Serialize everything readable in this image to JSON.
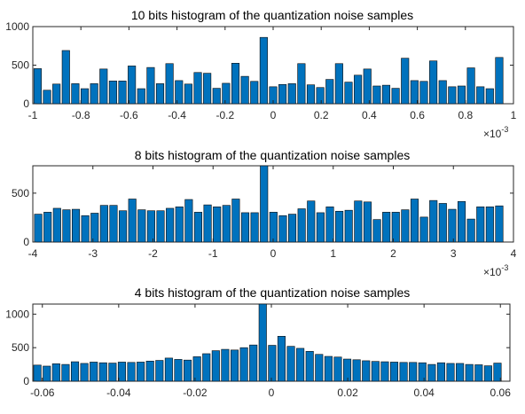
{
  "colors": {
    "bar": "#0072BD",
    "axis": "#262626",
    "background": "#ffffff"
  },
  "chart_data": [
    {
      "type": "bar",
      "title": "10 bits histogram of the quantization noise samples",
      "x_multiplier_label": "×10",
      "x_multiplier_exponent": "-3",
      "xlim": [
        -1,
        1
      ],
      "ylim": [
        0,
        1000
      ],
      "xticks": [
        -1,
        -0.8,
        -0.6,
        -0.4,
        -0.2,
        0,
        0.2,
        0.4,
        0.6,
        0.8,
        1
      ],
      "xtick_labels": [
        "-1",
        "-0.8",
        "-0.6",
        "-0.4",
        "-0.2",
        "0",
        "0.2",
        "0.4",
        "0.6",
        "0.8",
        "1"
      ],
      "yticks": [
        0,
        500,
        1000
      ],
      "ytick_labels": [
        "0",
        "500",
        "1000"
      ],
      "bin_start": -0.98,
      "bin_width": 0.0392,
      "values": [
        455,
        175,
        255,
        690,
        260,
        195,
        260,
        450,
        295,
        295,
        490,
        195,
        470,
        260,
        520,
        300,
        255,
        405,
        395,
        200,
        265,
        525,
        355,
        290,
        860,
        220,
        250,
        260,
        520,
        245,
        210,
        315,
        520,
        280,
        370,
        450,
        230,
        240,
        200,
        590,
        300,
        290,
        555,
        300,
        220,
        230,
        465,
        220,
        195,
        600
      ]
    },
    {
      "type": "bar",
      "title": "8 bits histogram of the quantization noise samples",
      "x_multiplier_label": "×10",
      "x_multiplier_exponent": "-3",
      "xlim": [
        -4,
        4
      ],
      "ylim": [
        0,
        780
      ],
      "xticks": [
        -4,
        -3,
        -2,
        -1,
        0,
        1,
        2,
        3,
        4
      ],
      "xtick_labels": [
        "-4",
        "-3",
        "-2",
        "-1",
        "0",
        "1",
        "2",
        "3",
        "4"
      ],
      "yticks": [
        0,
        500
      ],
      "ytick_labels": [
        "0",
        "500"
      ],
      "bin_start": -3.91,
      "bin_width": 0.1566,
      "values": [
        285,
        305,
        345,
        330,
        335,
        270,
        295,
        375,
        375,
        320,
        440,
        330,
        320,
        320,
        345,
        360,
        435,
        305,
        380,
        360,
        375,
        440,
        300,
        300,
        780,
        305,
        270,
        285,
        340,
        420,
        300,
        360,
        315,
        325,
        420,
        410,
        230,
        305,
        305,
        330,
        440,
        255,
        425,
        395,
        335,
        415,
        235,
        360,
        360,
        370
      ]
    },
    {
      "type": "bar",
      "title": "4 bits histogram of the quantization noise samples",
      "xlim": [
        -0.0625,
        0.0625
      ],
      "ylim": [
        0,
        1150
      ],
      "xticks": [
        -0.06,
        -0.04,
        -0.02,
        0,
        0.02,
        0.04,
        0.06
      ],
      "xtick_labels": [
        "-0.06",
        "-0.04",
        "-0.02",
        "0",
        "0.02",
        "0.04",
        "0.06"
      ],
      "yticks": [
        0,
        500,
        1000
      ],
      "ytick_labels": [
        "0",
        "500",
        "1000"
      ],
      "bin_start": -0.0613,
      "bin_width": 0.00246,
      "values": [
        240,
        225,
        260,
        250,
        290,
        265,
        285,
        275,
        270,
        285,
        280,
        285,
        300,
        310,
        345,
        325,
        315,
        365,
        410,
        455,
        475,
        465,
        500,
        540,
        1150,
        535,
        670,
        520,
        490,
        445,
        400,
        370,
        360,
        330,
        320,
        305,
        295,
        290,
        285,
        280,
        280,
        275,
        250,
        275,
        265,
        265,
        250,
        245,
        230,
        270
      ]
    }
  ]
}
